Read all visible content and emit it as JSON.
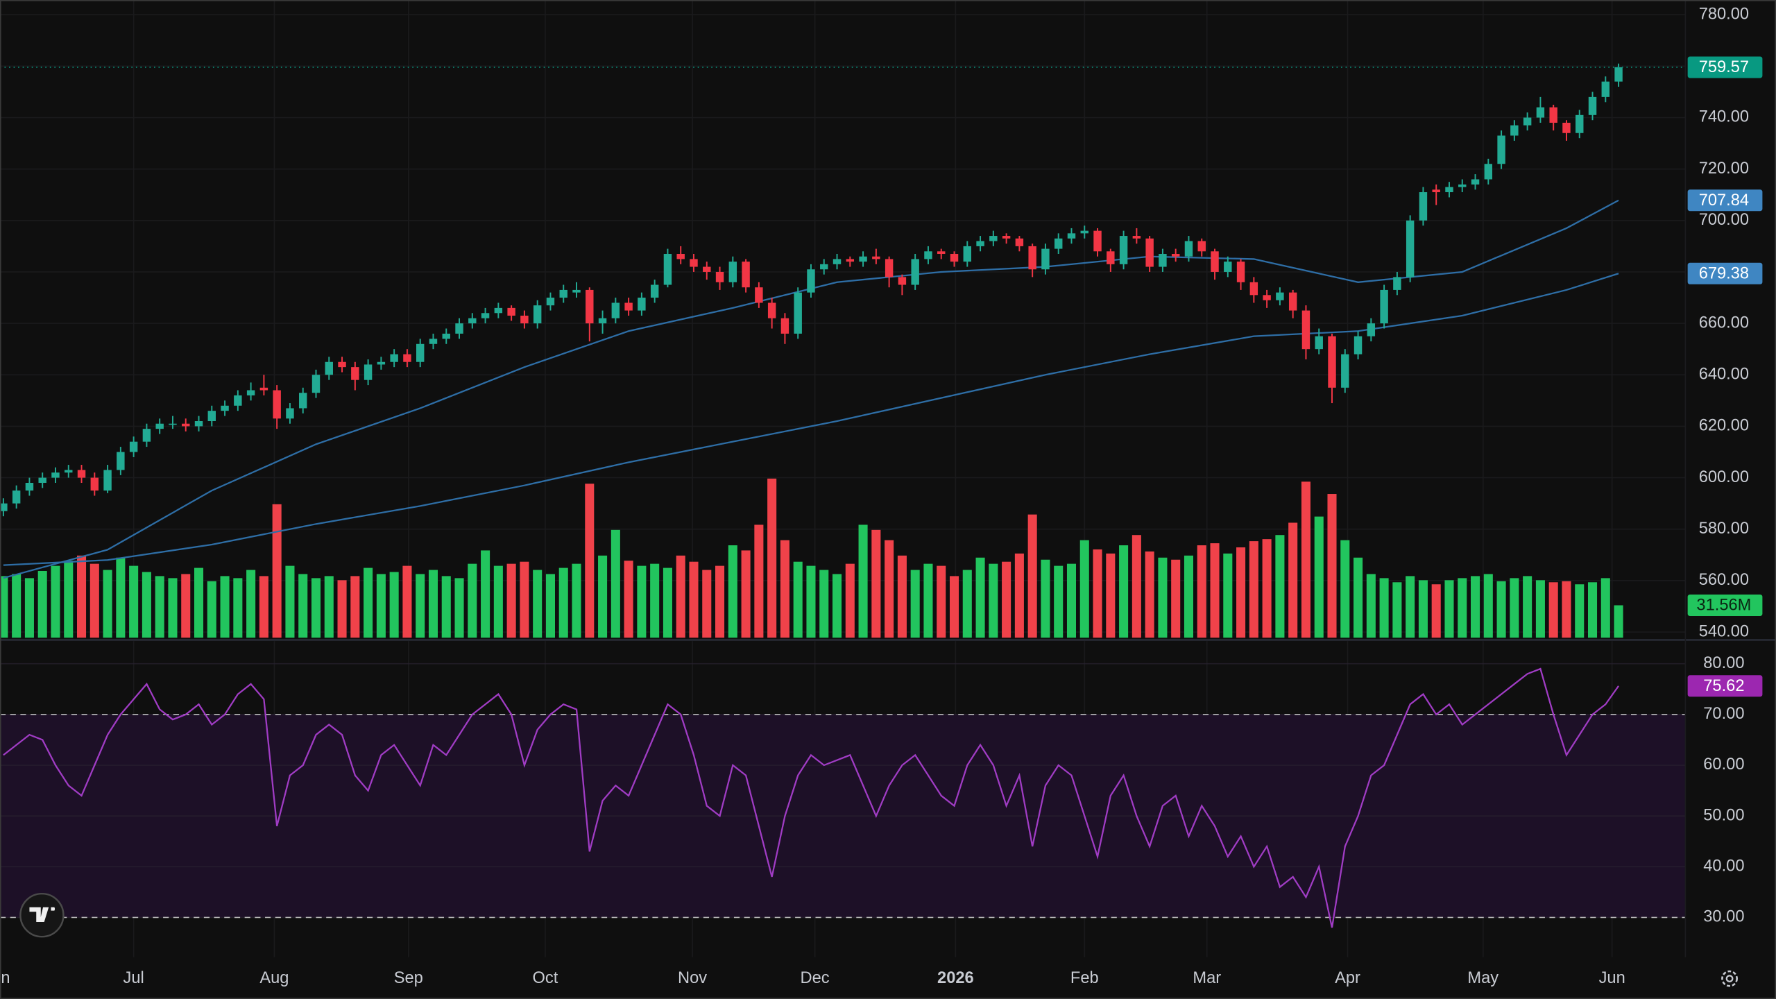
{
  "chart_data": [
    {
      "type": "candlestick",
      "xlim": [
        -0.26,
        129.13
      ],
      "xticks": [
        {
          "value": -0.5,
          "label": "Jun"
        },
        {
          "value": 10,
          "label": "Jul"
        },
        {
          "value": 20.8,
          "label": "Aug"
        },
        {
          "value": 31.1,
          "label": "Sep"
        },
        {
          "value": 41.6,
          "label": "Oct"
        },
        {
          "value": 52.9,
          "label": "Nov"
        },
        {
          "value": 62.3,
          "label": "Dec"
        },
        {
          "value": 73.1,
          "label": "2026",
          "bold": true
        },
        {
          "value": 83,
          "label": "Feb"
        },
        {
          "value": 92.4,
          "label": "Mar"
        },
        {
          "value": 103.2,
          "label": "Apr"
        },
        {
          "value": 113.6,
          "label": "May"
        },
        {
          "value": 123.5,
          "label": "Jun"
        }
      ],
      "ylim": [
        537.8,
        785.72
      ],
      "yticks": [
        {
          "value": 540,
          "label": "540.00"
        },
        {
          "value": 560,
          "label": "560.00"
        },
        {
          "value": 580,
          "label": "580.00"
        },
        {
          "value": 600,
          "label": "600.00"
        },
        {
          "value": 620,
          "label": "620.00"
        },
        {
          "value": 640,
          "label": "640.00"
        },
        {
          "value": 660,
          "label": "660.00"
        },
        {
          "value": 680,
          "label": "680.00"
        },
        {
          "value": 700,
          "label": "700.00"
        },
        {
          "value": 720,
          "label": "720.00"
        },
        {
          "value": 740,
          "label": "740.00"
        },
        {
          "value": 760,
          "label": "760.00"
        },
        {
          "value": 780,
          "label": "780.00"
        }
      ],
      "grid": true,
      "up_color": "#22ab94",
      "down_color": "#f23645",
      "last_price_color": "#089981",
      "candles": {
        "open": [
          587,
          590,
          595,
          598,
          600,
          602,
          603,
          600,
          595,
          603,
          610,
          614,
          619,
          621,
          621,
          620,
          622,
          626,
          628,
          632,
          635,
          634,
          623,
          627,
          633,
          640,
          645,
          643,
          638,
          644,
          645,
          648,
          645,
          652,
          654,
          656,
          660,
          662,
          664,
          666,
          663,
          660,
          667,
          670,
          672,
          673,
          660,
          662,
          668,
          665,
          670,
          675,
          687,
          685,
          682,
          680,
          676,
          684,
          674,
          668,
          662,
          656,
          672,
          681,
          683,
          685,
          684,
          686,
          685,
          678,
          675,
          685,
          688,
          687,
          684,
          690,
          692,
          694,
          693,
          690,
          681,
          689,
          693,
          695,
          696,
          688,
          683,
          694,
          693,
          682,
          687,
          686,
          692,
          688,
          680,
          684,
          676,
          671,
          669,
          672,
          665,
          650,
          655,
          635,
          648,
          655,
          660,
          673,
          678,
          700,
          712,
          711,
          713,
          714,
          716,
          722,
          733,
          737,
          740,
          744,
          738,
          734,
          741,
          748,
          754
        ],
        "high": [
          592,
          597,
          600,
          602,
          604,
          605,
          605,
          602,
          605,
          612,
          616,
          621,
          623,
          624,
          623,
          624,
          628,
          630,
          634,
          637,
          640,
          636,
          629,
          635,
          642,
          647,
          647,
          645,
          646,
          647,
          650,
          650,
          654,
          656,
          658,
          662,
          664,
          666,
          668,
          667,
          665,
          669,
          672,
          675,
          676,
          674,
          665,
          670,
          670,
          672,
          677,
          689,
          690,
          687,
          684,
          682,
          686,
          685,
          676,
          670,
          664,
          674,
          683,
          685,
          687,
          686,
          688,
          689,
          686,
          679,
          687,
          690,
          689,
          688,
          692,
          694,
          696,
          695,
          694,
          691,
          691,
          695,
          697,
          698,
          697,
          689,
          696,
          697,
          694,
          689,
          689,
          694,
          693,
          689,
          686,
          685,
          678,
          673,
          674,
          673,
          667,
          658,
          656,
          650,
          657,
          662,
          675,
          680,
          702,
          713,
          714,
          715,
          716,
          718,
          724,
          735,
          739,
          742,
          748,
          745,
          739,
          743,
          750,
          756,
          761
        ],
        "low": [
          585,
          588,
          593,
          596,
          598,
          600,
          598,
          593,
          594,
          601,
          608,
          612,
          617,
          619,
          618,
          618,
          620,
          624,
          626,
          630,
          632,
          619,
          621,
          625,
          631,
          638,
          641,
          634,
          636,
          642,
          643,
          643,
          643,
          650,
          652,
          654,
          658,
          660,
          662,
          661,
          658,
          658,
          665,
          668,
          670,
          653,
          656,
          660,
          663,
          663,
          668,
          674,
          683,
          680,
          677,
          673,
          674,
          672,
          666,
          658,
          652,
          654,
          670,
          679,
          681,
          682,
          682,
          683,
          674,
          671,
          673,
          683,
          685,
          682,
          682,
          688,
          690,
          691,
          688,
          678,
          679,
          687,
          691,
          693,
          686,
          680,
          681,
          691,
          680,
          680,
          684,
          684,
          686,
          677,
          678,
          673,
          668,
          666,
          667,
          662,
          646,
          648,
          629,
          633,
          646,
          653,
          658,
          671,
          676,
          698,
          706,
          709,
          711,
          712,
          714,
          720,
          731,
          735,
          738,
          735,
          731,
          732,
          739,
          746,
          752
        ],
        "close": [
          590,
          595,
          598,
          600,
          602,
          603,
          600,
          595,
          603,
          610,
          614,
          619,
          621,
          621,
          620,
          622,
          626,
          628,
          632,
          634,
          634,
          623,
          627,
          633,
          640,
          645,
          643,
          638,
          644,
          645,
          648,
          645,
          652,
          654,
          656,
          660,
          662,
          664,
          666,
          663,
          660,
          667,
          670,
          673,
          673,
          660,
          662,
          668,
          665,
          670,
          675,
          687,
          685,
          682,
          680,
          676,
          684,
          674,
          668,
          662,
          656,
          672,
          681,
          683,
          685,
          684,
          686,
          685,
          678,
          675,
          685,
          688,
          687,
          684,
          690,
          692,
          694,
          693,
          690,
          681,
          689,
          693,
          695,
          696,
          688,
          683,
          694,
          693,
          682,
          687,
          686,
          692,
          688,
          680,
          684,
          676,
          671,
          669,
          672,
          665,
          650,
          655,
          635,
          648,
          655,
          660,
          673,
          678,
          700,
          711,
          711,
          713,
          714,
          716,
          722,
          733,
          737,
          740,
          744,
          738,
          734,
          741,
          748,
          754,
          759.57
        ]
      },
      "volume": {
        "values": [
          60,
          62,
          58,
          65,
          70,
          75,
          80,
          72,
          66,
          78,
          70,
          64,
          60,
          58,
          62,
          68,
          55,
          60,
          58,
          66,
          60,
          130,
          70,
          62,
          58,
          60,
          56,
          60,
          68,
          62,
          64,
          70,
          62,
          66,
          60,
          58,
          72,
          85,
          70,
          72,
          74,
          66,
          62,
          68,
          72,
          150,
          80,
          105,
          75,
          70,
          72,
          68,
          80,
          74,
          66,
          70,
          90,
          85,
          110,
          155,
          95,
          74,
          70,
          66,
          62,
          72,
          110,
          105,
          95,
          80,
          66,
          72,
          70,
          60,
          66,
          78,
          72,
          74,
          82,
          120,
          76,
          70,
          72,
          95,
          86,
          82,
          90,
          100,
          84,
          78,
          76,
          80,
          90,
          92,
          82,
          88,
          94,
          96,
          100,
          112,
          152,
          118,
          140,
          95,
          78,
          62,
          58,
          54,
          60,
          56,
          52,
          56,
          58,
          60,
          62,
          55,
          58,
          60,
          56,
          54,
          55,
          52,
          54,
          58,
          31.56
        ],
        "value_labels": [
          null,
          null,
          null,
          null,
          null,
          null,
          null,
          null,
          null,
          null,
          null,
          null,
          null,
          null,
          null,
          null,
          null,
          null,
          null,
          null,
          null,
          null,
          null,
          null,
          null,
          null,
          null,
          null,
          null,
          null,
          null,
          null,
          null,
          null,
          null,
          null,
          null,
          null,
          null,
          null,
          null,
          null,
          null,
          null,
          null,
          null,
          null,
          null,
          null,
          null,
          null,
          null,
          null,
          null,
          null,
          null,
          null,
          null,
          null,
          null,
          null,
          null,
          null,
          null,
          null,
          null,
          null,
          null,
          null,
          null,
          null,
          null,
          null,
          null,
          null,
          null,
          null,
          null,
          null,
          null,
          null,
          null,
          null,
          null,
          null,
          null,
          null,
          null,
          null,
          null,
          null,
          null,
          null,
          null,
          null,
          null,
          null,
          null,
          null,
          null,
          null,
          null,
          null,
          null,
          null,
          null,
          null,
          null,
          null,
          null,
          null,
          null,
          null,
          null,
          null,
          null,
          null,
          null,
          null,
          null,
          null,
          null,
          null,
          null,
          "31.56M"
        ],
        "ylim": [
          0,
          160
        ],
        "up_color": "#22c55e",
        "down_color": "#f0424a"
      },
      "series": [
        {
          "type": "line",
          "color": "#2e6ea6",
          "label_color": "#3f86c2",
          "x": [
            0,
            8,
            16,
            24,
            32,
            40,
            48,
            56,
            64,
            72,
            80,
            88,
            96,
            104,
            112,
            120,
            124
          ],
          "values": [
            561,
            572,
            595,
            613,
            627,
            643,
            657,
            666,
            676,
            680,
            682,
            686,
            685,
            676,
            680,
            697,
            707.84
          ]
        },
        {
          "type": "line",
          "color": "#2e6ea6",
          "label_color": "#3f86c2",
          "x": [
            0,
            8,
            16,
            24,
            32,
            40,
            48,
            56,
            64,
            72,
            80,
            88,
            96,
            104,
            112,
            120,
            124
          ],
          "values": [
            566,
            568,
            574,
            582,
            589,
            597,
            606,
            614,
            622,
            631,
            640,
            648,
            655,
            657,
            663,
            673,
            679.38
          ]
        }
      ]
    },
    {
      "type": "line",
      "ylim": [
        22.19,
        84.46
      ],
      "yticks": [
        {
          "value": 30,
          "label": "30.00"
        },
        {
          "value": 40,
          "label": "40.00"
        },
        {
          "value": 50,
          "label": "50.00"
        },
        {
          "value": 60,
          "label": "60.00"
        },
        {
          "value": 70,
          "label": "70.00"
        },
        {
          "value": 80,
          "label": "80.00"
        }
      ],
      "grid": true,
      "color": "#a03cc4",
      "label_color": "#9c27b0",
      "band": [
        30,
        70
      ],
      "band_color": "#1d1027",
      "values": [
        62,
        64,
        66,
        65,
        60,
        56,
        54,
        60,
        66,
        70,
        73,
        76,
        71,
        69,
        70,
        72,
        68,
        70,
        74,
        76,
        73,
        48,
        58,
        60,
        66,
        68,
        66,
        58,
        55,
        62,
        64,
        60,
        56,
        64,
        62,
        66,
        70,
        72,
        74,
        70,
        60,
        67,
        70,
        72,
        71,
        43,
        53,
        56,
        54,
        60,
        66,
        72,
        70,
        62,
        52,
        50,
        60,
        58,
        48,
        38,
        50,
        58,
        62,
        60,
        61,
        62,
        56,
        50,
        56,
        60,
        62,
        58,
        54,
        52,
        60,
        64,
        60,
        52,
        58,
        44,
        56,
        60,
        58,
        50,
        42,
        54,
        58,
        50,
        44,
        52,
        54,
        46,
        52,
        48,
        42,
        46,
        40,
        44,
        36,
        38,
        34,
        40,
        28,
        44,
        50,
        58,
        60,
        66,
        72,
        74,
        70,
        72,
        68,
        70,
        72,
        74,
        76,
        78,
        79,
        70,
        62,
        66,
        70,
        72,
        75.62
      ]
    }
  ]
}
